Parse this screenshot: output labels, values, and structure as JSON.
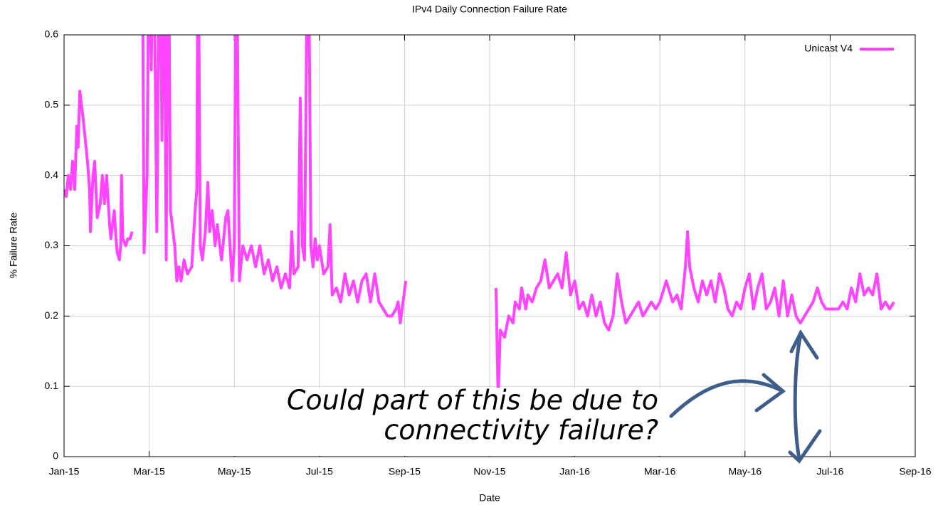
{
  "chart_data": {
    "type": "line",
    "title": "IPv4 Daily Connection Failure Rate",
    "x_label": "Date",
    "y_label": "% Failure Rate",
    "annotation_lines": [
      "Could part of this be due to",
      "connectivity failure?"
    ],
    "legend": "upper right",
    "grid": true,
    "xlim": [
      0,
      20
    ],
    "ylim": [
      0,
      0.6
    ],
    "xticks": [
      {
        "value": 0,
        "label": "Jan-15"
      },
      {
        "value": 2,
        "label": "Mar-15"
      },
      {
        "value": 4,
        "label": "May-15"
      },
      {
        "value": 6,
        "label": "Jul-15"
      },
      {
        "value": 8,
        "label": "Sep-15"
      },
      {
        "value": 10,
        "label": "Nov-15"
      },
      {
        "value": 12,
        "label": "Jan-16"
      },
      {
        "value": 14,
        "label": "Mar-16"
      },
      {
        "value": 16,
        "label": "May-16"
      },
      {
        "value": 18,
        "label": "Jul-16"
      },
      {
        "value": 20,
        "label": "Sep-16"
      }
    ],
    "yticks": [
      0,
      0.1,
      0.2,
      0.3,
      0.4,
      0.5,
      0.6
    ],
    "x": [
      0,
      0.05,
      0.1,
      0.15,
      0.2,
      0.25,
      0.3,
      0.33,
      0.37,
      0.45,
      0.55,
      0.6,
      0.62,
      0.68,
      0.72,
      0.78,
      0.85,
      0.9,
      0.95,
      1.0,
      1.07,
      1.1,
      1.18,
      1.22,
      1.25,
      1.3,
      1.33,
      1.35,
      1.38,
      1.45,
      1.5,
      1.55,
      1.6,
      1.7,
      1.84,
      1.88,
      1.95,
      2.0,
      2.05,
      2.1,
      2.18,
      2.25,
      2.3,
      2.35,
      2.4,
      2.45,
      2.5,
      2.6,
      2.65,
      2.7,
      2.75,
      2.82,
      2.9,
      3.0,
      3.08,
      3.12,
      3.15,
      3.2,
      3.25,
      3.32,
      3.38,
      3.42,
      3.48,
      3.55,
      3.6,
      3.7,
      3.8,
      3.85,
      3.9,
      3.95,
      4.0,
      4.05,
      4.12,
      4.2,
      4.3,
      4.4,
      4.5,
      4.6,
      4.7,
      4.8,
      4.9,
      5.0,
      5.1,
      5.2,
      5.3,
      5.35,
      5.4,
      5.5,
      5.55,
      5.6,
      5.65,
      5.7,
      5.75,
      5.8,
      5.85,
      5.9,
      5.95,
      6.0,
      6.1,
      6.2,
      6.25,
      6.3,
      6.4,
      6.5,
      6.6,
      6.7,
      6.8,
      6.9,
      7.0,
      7.1,
      7.2,
      7.3,
      7.4,
      7.5,
      7.6,
      7.7,
      7.8,
      7.85,
      7.9,
      8.03,
      9.0,
      10.15,
      10.2,
      10.25,
      10.35,
      10.45,
      10.55,
      10.6,
      10.7,
      10.75,
      10.85,
      10.9,
      11.0,
      11.1,
      11.2,
      11.3,
      11.4,
      11.5,
      11.6,
      11.7,
      11.8,
      11.9,
      12.0,
      12.1,
      12.2,
      12.3,
      12.4,
      12.5,
      12.6,
      12.7,
      12.8,
      12.9,
      13.0,
      13.1,
      13.2,
      13.3,
      13.5,
      13.6,
      13.8,
      13.9,
      14.0,
      14.15,
      14.3,
      14.4,
      14.5,
      14.6,
      14.65,
      14.7,
      14.8,
      14.9,
      15.0,
      15.1,
      15.2,
      15.3,
      15.4,
      15.5,
      15.6,
      15.7,
      15.8,
      15.9,
      16.0,
      16.1,
      16.2,
      16.3,
      16.4,
      16.5,
      16.6,
      16.7,
      16.8,
      16.9,
      17.0,
      17.1,
      17.2,
      17.3,
      17.4,
      17.5,
      17.6,
      17.7,
      17.8,
      17.9,
      18.0,
      18.2,
      18.3,
      18.4,
      18.5,
      18.6,
      18.7,
      18.8,
      18.9,
      19.0,
      19.1,
      19.2,
      19.3,
      19.4,
      19.5
    ],
    "series": [
      {
        "name": "Unicast V4",
        "color": "#ff44ff",
        "values": [
          0.38,
          0.37,
          0.4,
          0.38,
          0.42,
          0.38,
          0.47,
          0.44,
          0.52,
          0.48,
          0.42,
          0.38,
          0.32,
          0.4,
          0.42,
          0.34,
          0.36,
          0.4,
          0.36,
          0.4,
          0.33,
          0.31,
          0.35,
          0.31,
          0.29,
          0.28,
          0.3,
          0.4,
          0.31,
          0.3,
          0.31,
          0.31,
          0.32,
          null,
          0.75,
          0.29,
          0.4,
          0.8,
          0.55,
          0.8,
          0.32,
          0.8,
          0.45,
          0.8,
          0.28,
          0.8,
          0.35,
          0.3,
          0.25,
          0.27,
          0.25,
          0.28,
          0.26,
          0.27,
          0.35,
          0.38,
          0.8,
          0.3,
          0.28,
          0.32,
          0.39,
          0.32,
          0.35,
          0.3,
          0.33,
          0.28,
          0.34,
          0.35,
          0.3,
          0.25,
          0.3,
          0.8,
          0.25,
          0.3,
          0.28,
          0.3,
          0.27,
          0.3,
          0.26,
          0.28,
          0.25,
          0.27,
          0.24,
          0.26,
          0.24,
          0.32,
          0.26,
          0.27,
          0.51,
          0.3,
          0.28,
          0.6,
          0.7,
          0.3,
          0.27,
          0.31,
          0.28,
          0.3,
          0.26,
          0.27,
          0.33,
          0.23,
          0.24,
          0.22,
          0.26,
          0.23,
          0.25,
          0.22,
          0.25,
          0.26,
          0.22,
          0.26,
          0.22,
          0.21,
          0.2,
          0.2,
          0.21,
          0.22,
          0.19,
          0.25,
          null,
          0.24,
          0.08,
          0.18,
          0.17,
          0.2,
          0.19,
          0.22,
          0.21,
          0.24,
          0.21,
          0.23,
          0.22,
          0.24,
          0.25,
          0.28,
          0.24,
          0.25,
          0.26,
          0.24,
          0.29,
          0.23,
          0.25,
          0.21,
          0.22,
          0.2,
          0.23,
          0.2,
          0.22,
          0.19,
          0.18,
          0.2,
          0.26,
          0.22,
          0.19,
          0.2,
          0.22,
          0.2,
          0.22,
          0.21,
          0.22,
          0.25,
          0.22,
          0.23,
          0.21,
          0.27,
          0.32,
          0.27,
          0.24,
          0.22,
          0.25,
          0.23,
          0.25,
          0.22,
          0.26,
          0.24,
          0.21,
          0.2,
          0.22,
          0.21,
          0.24,
          0.26,
          0.21,
          0.24,
          0.26,
          0.21,
          0.22,
          0.24,
          0.2,
          0.25,
          0.2,
          0.23,
          0.2,
          0.19,
          0.2,
          0.21,
          0.22,
          0.24,
          0.22,
          0.21,
          0.21,
          0.21,
          0.22,
          0.21,
          0.24,
          0.22,
          0.26,
          0.23,
          0.24,
          0.23,
          0.26,
          0.21,
          0.22,
          0.21,
          0.22
        ]
      }
    ]
  }
}
